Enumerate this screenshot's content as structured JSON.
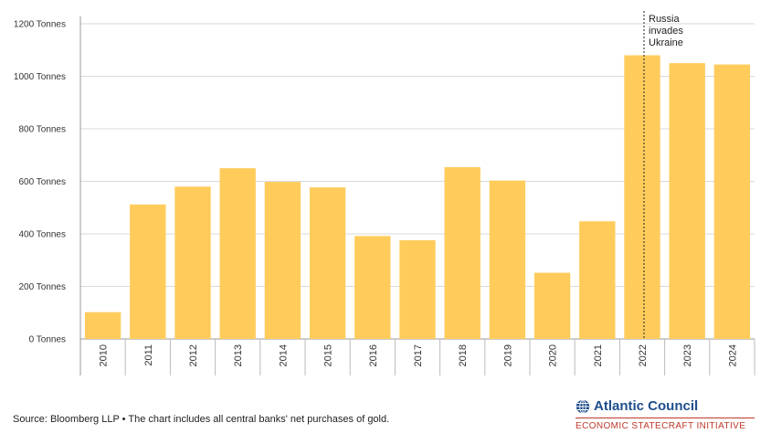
{
  "chart_data": {
    "type": "bar",
    "title": "",
    "xlabel": "",
    "ylabel": "",
    "ylim": [
      0,
      1200
    ],
    "yticks": [
      0,
      200,
      400,
      600,
      800,
      1000,
      1200
    ],
    "ytick_suffix": " Tonnes",
    "ytick_labels": [
      "0 Tonnes",
      "200 Tonnes",
      "400 Tonnes",
      "600 Tonnes",
      "800 Tonnes",
      "1000 Tonnes",
      "1200 Tonnes"
    ],
    "categories": [
      "2010",
      "2011",
      "2012",
      "2013",
      "2014",
      "2015",
      "2016",
      "2017",
      "2018",
      "2019",
      "2020",
      "2021",
      "2022",
      "2023",
      "2024"
    ],
    "values": [
      102,
      512,
      580,
      650,
      598,
      577,
      392,
      376,
      654,
      603,
      252,
      448,
      1080,
      1050,
      1045
    ],
    "bar_color": "#ffcc5c",
    "grid": true,
    "annotation": {
      "at_category": "2022",
      "lines": [
        "Russia",
        "invades",
        "Ukraine"
      ]
    }
  },
  "footer": {
    "source": "Source: Bloomberg LLP • The chart includes all central banks' net purchases of gold."
  },
  "brand": {
    "name": "Atlantic Council",
    "subtitle": "ECONOMIC STATECRAFT INITIATIVE",
    "icon": "globe-icon",
    "name_color": "#1e4e8c",
    "subtitle_color": "#c0392b"
  }
}
